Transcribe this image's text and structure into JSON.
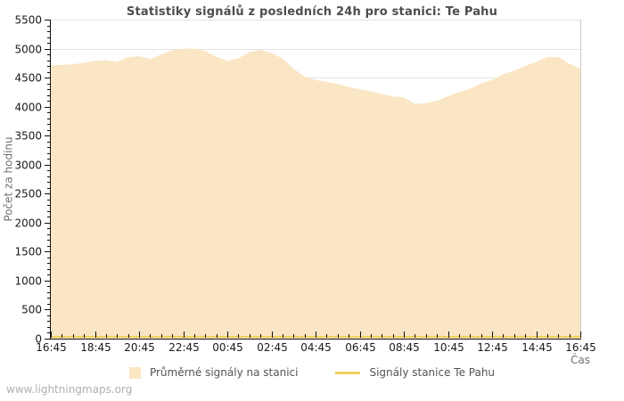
{
  "chart_data": {
    "type": "area",
    "title": "Statistiky signálů z posledních 24h pro stanici: Te Pahu",
    "xlabel": "Čas",
    "ylabel": "Počet za hodinu",
    "ylim": [
      0,
      5500
    ],
    "y_tick_step": 500,
    "y_minor_step": 100,
    "grid": true,
    "legend_position": "bottom-center",
    "x_tick_labels": [
      "16:45",
      "18:45",
      "20:45",
      "22:45",
      "00:45",
      "02:45",
      "04:45",
      "06:45",
      "08:45",
      "10:45",
      "12:45",
      "14:45",
      "16:45"
    ],
    "x_sample_interval_minutes": 30,
    "colors": {
      "grid_line": "#e3e3e3",
      "plot_border_light": "#cccccc",
      "axis_line": "#111111",
      "tick_label": "#1a1a1a"
    },
    "series": [
      {
        "name": "Průměrné signály na stanici",
        "type": "area",
        "fill_color": "#fae6c4",
        "values": [
          4710,
          4720,
          4730,
          4755,
          4790,
          4800,
          4770,
          4850,
          4870,
          4820,
          4900,
          4970,
          5000,
          5000,
          4955,
          4860,
          4790,
          4830,
          4940,
          4980,
          4920,
          4830,
          4650,
          4520,
          4460,
          4425,
          4390,
          4340,
          4300,
          4265,
          4215,
          4175,
          4160,
          4045,
          4060,
          4100,
          4180,
          4250,
          4310,
          4400,
          4460,
          4560,
          4620,
          4700,
          4770,
          4860,
          4855,
          4740,
          4660
        ]
      },
      {
        "name": "Signály stanice Te Pahu",
        "type": "line",
        "color": "#eed05e",
        "values": [
          0,
          0,
          0,
          0,
          0,
          0,
          0,
          0,
          0,
          0,
          0,
          0,
          0,
          0,
          0,
          0,
          0,
          0,
          0,
          0,
          0,
          0,
          0,
          0,
          0,
          0,
          0,
          0,
          0,
          0,
          0,
          0,
          0,
          0,
          0,
          0,
          0,
          0,
          0,
          0,
          0,
          0,
          0,
          0,
          0,
          0,
          0,
          0,
          0
        ]
      }
    ]
  },
  "footer": {
    "watermark": "www.lightningmaps.org"
  }
}
